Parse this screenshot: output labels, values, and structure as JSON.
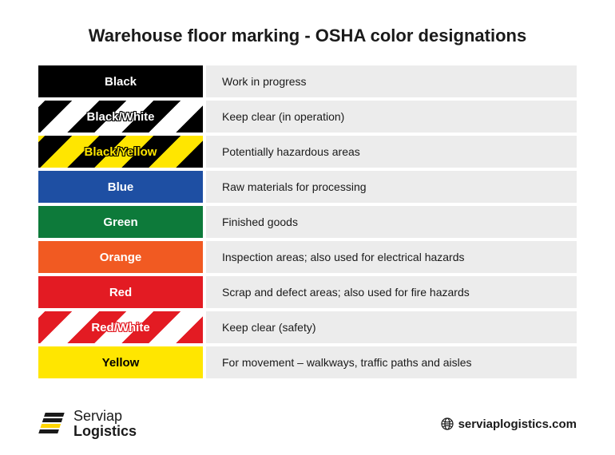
{
  "title": "Warehouse floor marking - OSHA color designations",
  "row_bg": "#ececec",
  "title_color": "#1a1a1a",
  "rows": [
    {
      "label": "Black",
      "desc": "Work in progress",
      "type": "solid",
      "bg": "#000000",
      "text": "#ffffff"
    },
    {
      "label": "Black/White",
      "desc": "Keep clear (in operation)",
      "type": "stripe",
      "c1": "#000000",
      "c2": "#ffffff",
      "text": "#ffffff",
      "stroke": "#000000"
    },
    {
      "label": "Black/Yellow",
      "desc": "Potentially hazardous areas",
      "type": "stripe",
      "c1": "#000000",
      "c2": "#ffe600",
      "text": "#ffe600",
      "stroke": "#000000"
    },
    {
      "label": "Blue",
      "desc": "Raw materials for processing",
      "type": "solid",
      "bg": "#1e4fa3",
      "text": "#ffffff"
    },
    {
      "label": "Green",
      "desc": "Finished goods",
      "type": "solid",
      "bg": "#0d7a3a",
      "text": "#ffffff"
    },
    {
      "label": "Orange",
      "desc": "Inspection areas; also used for electrical hazards",
      "type": "solid",
      "bg": "#f15a22",
      "text": "#ffffff"
    },
    {
      "label": "Red",
      "desc": "Scrap and defect areas; also used for fire hazards",
      "type": "solid",
      "bg": "#e31b23",
      "text": "#ffffff"
    },
    {
      "label": "Red/White",
      "desc": "Keep clear (safety)",
      "type": "stripe",
      "c1": "#e31b23",
      "c2": "#ffffff",
      "text": "#ffffff",
      "stroke": "#e31b23"
    },
    {
      "label": "Yellow",
      "desc": "For movement – walkways, traffic paths and aisles",
      "type": "solid",
      "bg": "#ffe600",
      "text": "#000000"
    }
  ],
  "stripe": {
    "width": 24,
    "angle": -45
  },
  "brand": {
    "line1": "Serviap",
    "line2": "Logistics",
    "icon_colors": {
      "dark": "#1a1a1a",
      "accent": "#ffd500"
    }
  },
  "site": "serviaplogistics.com"
}
